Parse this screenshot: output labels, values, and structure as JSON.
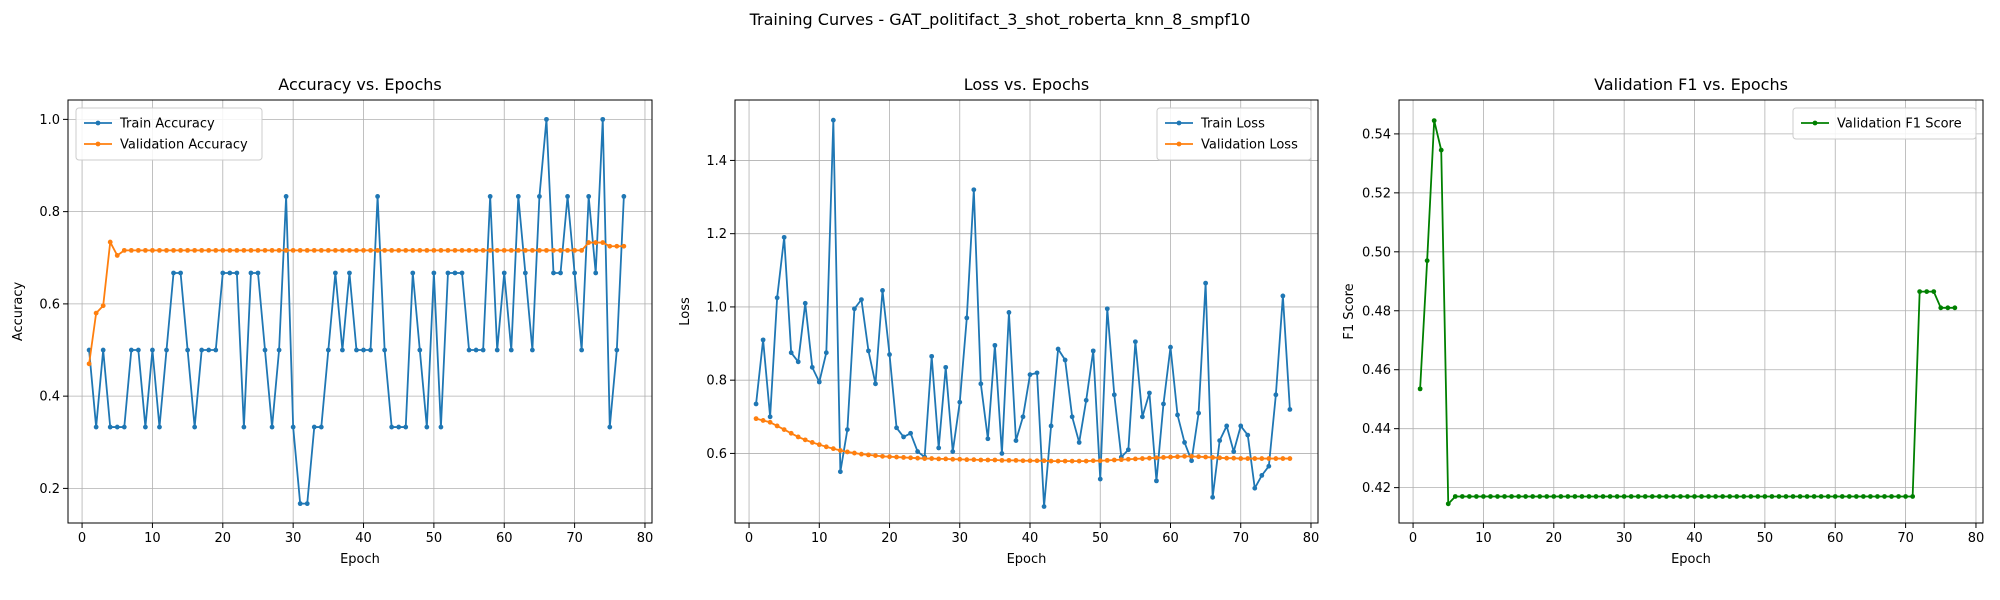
{
  "figure": {
    "suptitle": "Training Curves - GAT_politifact_3_shot_roberta_knn_8_smpf10"
  },
  "chart_data": [
    {
      "type": "line",
      "title": "Accuracy vs. Epochs",
      "xlabel": "Epoch",
      "ylabel": "Accuracy",
      "xlim": [
        -2,
        81
      ],
      "ylim": [
        0.125,
        1.042
      ],
      "xticks": [
        0,
        10,
        20,
        30,
        40,
        50,
        60,
        70,
        80
      ],
      "yticks": [
        0.2,
        0.4,
        0.6,
        0.8,
        1.0
      ],
      "ytick_labels": [
        "0.2",
        "0.4",
        "0.6",
        "0.8",
        "1.0"
      ],
      "grid": true,
      "legend": "upper left",
      "series": [
        {
          "name": "Train Accuracy",
          "color": "#1f77b4",
          "x": [
            1,
            2,
            3,
            4,
            5,
            6,
            7,
            8,
            9,
            10,
            11,
            12,
            13,
            14,
            15,
            16,
            17,
            18,
            19,
            20,
            21,
            22,
            23,
            24,
            25,
            26,
            27,
            28,
            29,
            30,
            31,
            32,
            33,
            34,
            35,
            36,
            37,
            38,
            39,
            40,
            41,
            42,
            43,
            44,
            45,
            46,
            47,
            48,
            49,
            50,
            51,
            52,
            53,
            54,
            55,
            56,
            57,
            58,
            59,
            60,
            61,
            62,
            63,
            64,
            65,
            66,
            67,
            68,
            69,
            70,
            71,
            72,
            73,
            74,
            75,
            76,
            77
          ],
          "values": [
            0.5,
            0.333,
            0.5,
            0.333,
            0.333,
            0.333,
            0.5,
            0.5,
            0.333,
            0.5,
            0.333,
            0.5,
            0.667,
            0.667,
            0.5,
            0.333,
            0.5,
            0.5,
            0.5,
            0.667,
            0.667,
            0.667,
            0.333,
            0.667,
            0.667,
            0.5,
            0.333,
            0.5,
            0.833,
            0.333,
            0.167,
            0.167,
            0.333,
            0.333,
            0.5,
            0.667,
            0.5,
            0.667,
            0.5,
            0.5,
            0.5,
            0.833,
            0.5,
            0.333,
            0.333,
            0.333,
            0.667,
            0.5,
            0.333,
            0.667,
            0.333,
            0.667,
            0.667,
            0.667,
            0.5,
            0.5,
            0.5,
            0.833,
            0.5,
            0.667,
            0.5,
            0.833,
            0.667,
            0.5,
            0.833,
            1.0,
            0.667,
            0.667,
            0.833,
            0.667,
            0.5,
            0.833,
            0.667,
            1.0,
            0.333,
            0.5,
            0.833
          ]
        },
        {
          "name": "Validation Accuracy",
          "color": "#ff7f0e",
          "x": [
            1,
            2,
            3,
            4,
            5,
            6,
            7,
            8,
            9,
            10,
            11,
            12,
            13,
            14,
            15,
            16,
            17,
            18,
            19,
            20,
            21,
            22,
            23,
            24,
            25,
            26,
            27,
            28,
            29,
            30,
            31,
            32,
            33,
            34,
            35,
            36,
            37,
            38,
            39,
            40,
            41,
            42,
            43,
            44,
            45,
            46,
            47,
            48,
            49,
            50,
            51,
            52,
            53,
            54,
            55,
            56,
            57,
            58,
            59,
            60,
            61,
            62,
            63,
            64,
            65,
            66,
            67,
            68,
            69,
            70,
            71,
            72,
            73,
            74,
            75,
            76,
            77
          ],
          "values": [
            0.47,
            0.58,
            0.596,
            0.734,
            0.705,
            0.716,
            0.716,
            0.716,
            0.716,
            0.716,
            0.716,
            0.716,
            0.716,
            0.716,
            0.716,
            0.716,
            0.716,
            0.716,
            0.716,
            0.716,
            0.716,
            0.716,
            0.716,
            0.716,
            0.716,
            0.716,
            0.716,
            0.716,
            0.716,
            0.716,
            0.716,
            0.716,
            0.716,
            0.716,
            0.716,
            0.716,
            0.716,
            0.716,
            0.716,
            0.716,
            0.716,
            0.716,
            0.716,
            0.716,
            0.716,
            0.716,
            0.716,
            0.716,
            0.716,
            0.716,
            0.716,
            0.716,
            0.716,
            0.716,
            0.716,
            0.716,
            0.716,
            0.716,
            0.716,
            0.716,
            0.716,
            0.716,
            0.716,
            0.716,
            0.716,
            0.716,
            0.716,
            0.716,
            0.716,
            0.716,
            0.716,
            0.733,
            0.733,
            0.733,
            0.725,
            0.725,
            0.725
          ]
        }
      ]
    },
    {
      "type": "line",
      "title": "Loss vs. Epochs",
      "xlabel": "Epoch",
      "ylabel": "Loss",
      "xlim": [
        -2,
        81
      ],
      "ylim": [
        0.41,
        1.565
      ],
      "xticks": [
        0,
        10,
        20,
        30,
        40,
        50,
        60,
        70,
        80
      ],
      "yticks": [
        0.6,
        0.8,
        1.0,
        1.2,
        1.4
      ],
      "ytick_labels": [
        "0.6",
        "0.8",
        "1.0",
        "1.2",
        "1.4"
      ],
      "grid": true,
      "legend": "upper right",
      "series": [
        {
          "name": "Train Loss",
          "color": "#1f77b4",
          "x": [
            1,
            2,
            3,
            4,
            5,
            6,
            7,
            8,
            9,
            10,
            11,
            12,
            13,
            14,
            15,
            16,
            17,
            18,
            19,
            20,
            21,
            22,
            23,
            24,
            25,
            26,
            27,
            28,
            29,
            30,
            31,
            32,
            33,
            34,
            35,
            36,
            37,
            38,
            39,
            40,
            41,
            42,
            43,
            44,
            45,
            46,
            47,
            48,
            49,
            50,
            51,
            52,
            53,
            54,
            55,
            56,
            57,
            58,
            59,
            60,
            61,
            62,
            63,
            64,
            65,
            66,
            67,
            68,
            69,
            70,
            71,
            72,
            73,
            74,
            75,
            76,
            77
          ],
          "values": [
            0.735,
            0.91,
            0.7,
            1.025,
            1.19,
            0.875,
            0.85,
            1.01,
            0.835,
            0.795,
            0.875,
            1.51,
            0.55,
            0.665,
            0.995,
            1.02,
            0.88,
            0.79,
            1.045,
            0.87,
            0.67,
            0.645,
            0.655,
            0.605,
            0.59,
            0.865,
            0.615,
            0.835,
            0.605,
            0.74,
            0.97,
            1.32,
            0.79,
            0.64,
            0.895,
            0.6,
            0.985,
            0.635,
            0.7,
            0.815,
            0.82,
            0.455,
            0.675,
            0.885,
            0.855,
            0.7,
            0.63,
            0.745,
            0.88,
            0.53,
            0.995,
            0.76,
            0.59,
            0.61,
            0.905,
            0.7,
            0.765,
            0.525,
            0.735,
            0.89,
            0.705,
            0.63,
            0.58,
            0.71,
            1.065,
            0.48,
            0.635,
            0.675,
            0.605,
            0.675,
            0.65,
            0.505,
            0.54,
            0.565,
            0.76,
            1.03,
            0.72
          ]
        },
        {
          "name": "Validation Loss",
          "color": "#ff7f0e",
          "x": [
            1,
            2,
            3,
            4,
            5,
            6,
            7,
            8,
            9,
            10,
            11,
            12,
            13,
            14,
            15,
            16,
            17,
            18,
            19,
            20,
            21,
            22,
            23,
            24,
            25,
            26,
            27,
            28,
            29,
            30,
            31,
            32,
            33,
            34,
            35,
            36,
            37,
            38,
            39,
            40,
            41,
            42,
            43,
            44,
            45,
            46,
            47,
            48,
            49,
            50,
            51,
            52,
            53,
            54,
            55,
            56,
            57,
            58,
            59,
            60,
            61,
            62,
            63,
            64,
            65,
            66,
            67,
            68,
            69,
            70,
            71,
            72,
            73,
            74,
            75,
            76,
            77
          ],
          "values": [
            0.695,
            0.69,
            0.685,
            0.675,
            0.665,
            0.655,
            0.645,
            0.637,
            0.63,
            0.624,
            0.618,
            0.613,
            0.608,
            0.604,
            0.601,
            0.598,
            0.596,
            0.594,
            0.592,
            0.591,
            0.59,
            0.589,
            0.588,
            0.587,
            0.586,
            0.586,
            0.585,
            0.585,
            0.584,
            0.584,
            0.583,
            0.583,
            0.582,
            0.582,
            0.582,
            0.581,
            0.581,
            0.581,
            0.58,
            0.58,
            0.58,
            0.58,
            0.579,
            0.579,
            0.579,
            0.579,
            0.579,
            0.579,
            0.58,
            0.58,
            0.581,
            0.582,
            0.583,
            0.584,
            0.585,
            0.586,
            0.587,
            0.588,
            0.589,
            0.59,
            0.591,
            0.592,
            0.592,
            0.591,
            0.59,
            0.589,
            0.588,
            0.587,
            0.587,
            0.586,
            0.586,
            0.586,
            0.586,
            0.586,
            0.586,
            0.586,
            0.586
          ]
        }
      ]
    },
    {
      "type": "line",
      "title": "Validation F1 vs. Epochs",
      "xlabel": "Epoch",
      "ylabel": "F1 Score",
      "xlim": [
        -2,
        81
      ],
      "ylim": [
        0.408,
        0.5515
      ],
      "xticks": [
        0,
        10,
        20,
        30,
        40,
        50,
        60,
        70,
        80
      ],
      "yticks": [
        0.42,
        0.44,
        0.46,
        0.48,
        0.5,
        0.52,
        0.54
      ],
      "ytick_labels": [
        "0.42",
        "0.44",
        "0.46",
        "0.48",
        "0.50",
        "0.52",
        "0.54"
      ],
      "grid": true,
      "legend": "upper right",
      "series": [
        {
          "name": "Validation F1 Score",
          "color": "#008000",
          "x": [
            1,
            2,
            3,
            4,
            5,
            6,
            7,
            8,
            9,
            10,
            11,
            12,
            13,
            14,
            15,
            16,
            17,
            18,
            19,
            20,
            21,
            22,
            23,
            24,
            25,
            26,
            27,
            28,
            29,
            30,
            31,
            32,
            33,
            34,
            35,
            36,
            37,
            38,
            39,
            40,
            41,
            42,
            43,
            44,
            45,
            46,
            47,
            48,
            49,
            50,
            51,
            52,
            53,
            54,
            55,
            56,
            57,
            58,
            59,
            60,
            61,
            62,
            63,
            64,
            65,
            66,
            67,
            68,
            69,
            70,
            71,
            72,
            73,
            74,
            75,
            76,
            77
          ],
          "values": [
            0.4535,
            0.497,
            0.5445,
            0.5345,
            0.4145,
            0.417,
            0.417,
            0.417,
            0.417,
            0.417,
            0.417,
            0.417,
            0.417,
            0.417,
            0.417,
            0.417,
            0.417,
            0.417,
            0.417,
            0.417,
            0.417,
            0.417,
            0.417,
            0.417,
            0.417,
            0.417,
            0.417,
            0.417,
            0.417,
            0.417,
            0.417,
            0.417,
            0.417,
            0.417,
            0.417,
            0.417,
            0.417,
            0.417,
            0.417,
            0.417,
            0.417,
            0.417,
            0.417,
            0.417,
            0.417,
            0.417,
            0.417,
            0.417,
            0.417,
            0.417,
            0.417,
            0.417,
            0.417,
            0.417,
            0.417,
            0.417,
            0.417,
            0.417,
            0.417,
            0.417,
            0.417,
            0.417,
            0.417,
            0.417,
            0.417,
            0.417,
            0.417,
            0.417,
            0.417,
            0.417,
            0.417,
            0.4865,
            0.4865,
            0.4865,
            0.481,
            0.481,
            0.481
          ]
        }
      ]
    }
  ]
}
